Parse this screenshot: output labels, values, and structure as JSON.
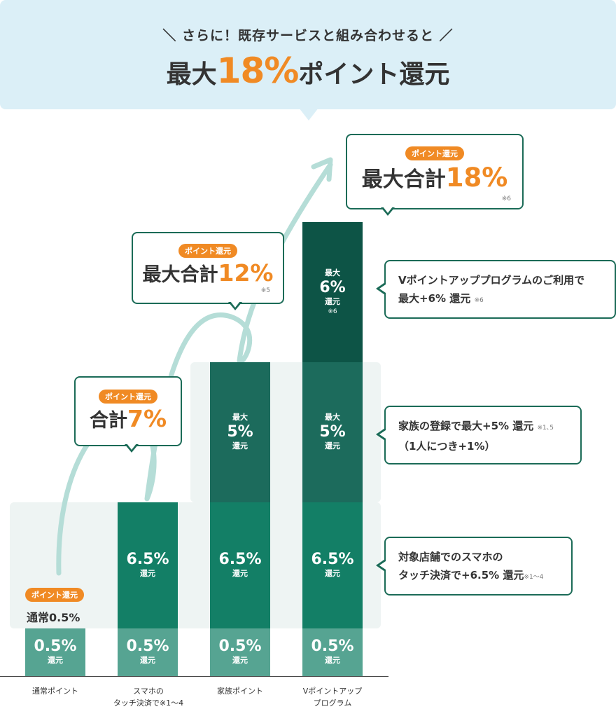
{
  "header": {
    "subtitle": "＼ さらに！既存サービスと組み合わせると ／",
    "headline_pre": "最大",
    "headline_pct": "18%",
    "headline_post": "ポイント還元"
  },
  "badge_label": "ポイント還元",
  "base_callout": {
    "label": "通常0.5%"
  },
  "callouts": [
    {
      "title_pre": "合計",
      "title_pct": "7%",
      "note": ""
    },
    {
      "title_pre": "最大合計",
      "title_pct": "12%",
      "note": "※5"
    },
    {
      "title_pre": "最大合計",
      "title_pct": "18%",
      "note": "※6"
    }
  ],
  "right_callouts": [
    {
      "line1": "Vポイントアッププログラムのご利用で",
      "line2": "最大+6% 還元",
      "note": "※6"
    },
    {
      "line1": "家族の登録で最大+5% 還元",
      "note": "※1､5",
      "line2": "（1人につき+1%）"
    },
    {
      "line1": "対象店舗でのスマホの",
      "line2": "タッチ決済で+6.5% 還元",
      "note": "※1〜4"
    }
  ],
  "segments": {
    "kanji_max": "最大",
    "kanji_kangen": "還元",
    "base": "0.5%",
    "touch": "6.5%",
    "family": "5%",
    "vpoint": "6%",
    "vpoint_note": "※6"
  },
  "x_labels": [
    {
      "line1": "通常ポイント",
      "line2": ""
    },
    {
      "line1": "スマホの",
      "line2": "タッチ決済で※1〜4"
    },
    {
      "line1": "家族ポイント",
      "line2": ""
    },
    {
      "line1": "Vポイントアップ",
      "line2": "プログラム"
    }
  ],
  "chart_data": {
    "type": "bar",
    "stacked": true,
    "categories": [
      "通常ポイント",
      "スマホのタッチ決済で※1〜4",
      "家族ポイント",
      "Vポイントアッププログラム"
    ],
    "series": [
      {
        "name": "通常",
        "values": [
          0.5,
          0.5,
          0.5,
          0.5
        ]
      },
      {
        "name": "スマホのタッチ決済",
        "values": [
          0,
          6.5,
          6.5,
          6.5
        ]
      },
      {
        "name": "家族ポイント",
        "values": [
          0,
          0,
          5,
          5
        ]
      },
      {
        "name": "Vポイントアッププログラム",
        "values": [
          0,
          0,
          0,
          6
        ]
      }
    ],
    "totals": [
      0.5,
      7,
      12,
      18
    ],
    "unit": "%",
    "colors": {
      "base": "#56a492",
      "touch": "#137f66",
      "family": "#1c6b5c",
      "vpoint": "#0d5446",
      "accent": "#f08a24",
      "band": "#eef4f3",
      "arrow": "#b5ddd7"
    }
  }
}
